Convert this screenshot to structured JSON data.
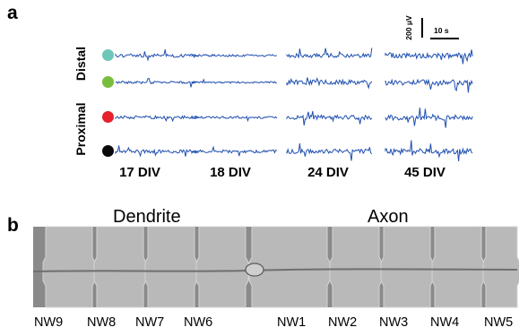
{
  "panel_a": {
    "letter": "a",
    "group_labels": {
      "distal": "Distal",
      "proximal": "Proximal"
    },
    "channel_colors": [
      "#6dc6b8",
      "#79bd3c",
      "#e8202b",
      "#0a0a0a"
    ],
    "trace_color": "#1f4fb0",
    "scale_bar": {
      "voltage": "200 μV",
      "time": "10 s"
    },
    "columns": [
      "17 DIV",
      "18 DIV",
      "24 DIV",
      "45 DIV"
    ]
  },
  "panel_b": {
    "letter": "b",
    "dendrite_label": "Dendrite",
    "axon_label": "Axon",
    "nanowire_labels": [
      "NW9",
      "NW8",
      "NW7",
      "NW6",
      "NW1",
      "NW2",
      "NW3",
      "NW4",
      "NW5"
    ]
  }
}
